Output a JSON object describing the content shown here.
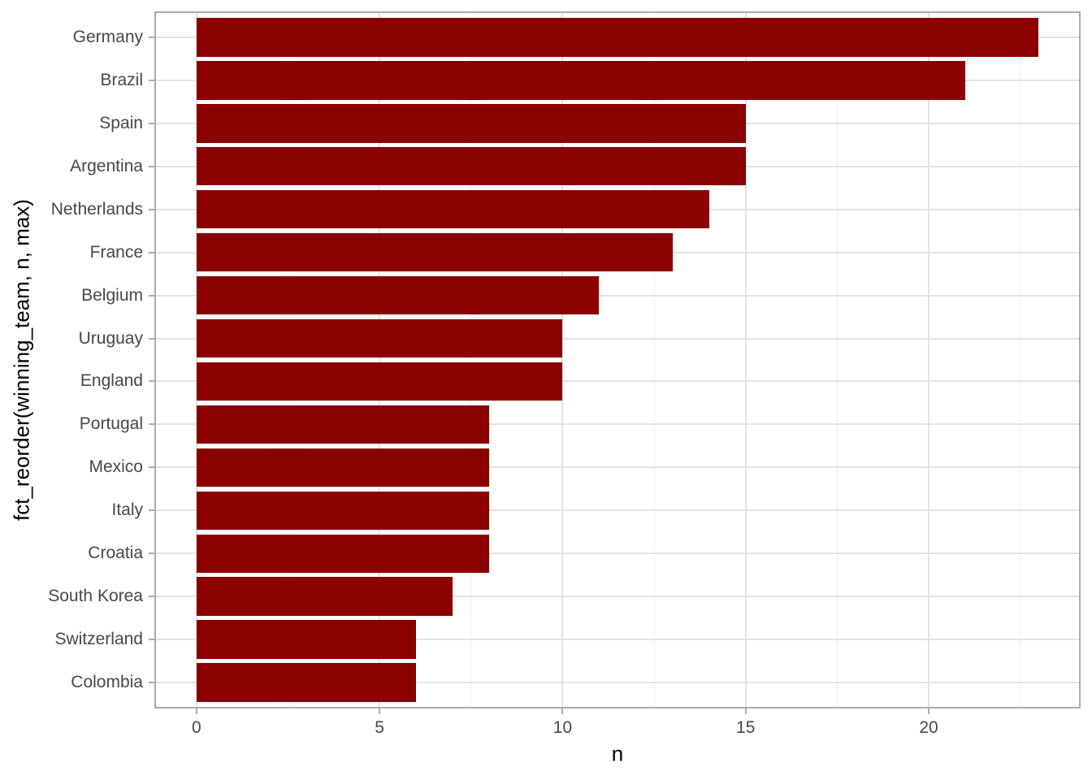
{
  "chart_data": {
    "type": "bar",
    "orientation": "horizontal",
    "title": "",
    "xlabel": "n",
    "ylabel": "fct_reorder(winning_team, n, max)",
    "categories": [
      "Germany",
      "Brazil",
      "Spain",
      "Argentina",
      "Netherlands",
      "France",
      "Belgium",
      "Uruguay",
      "England",
      "Portugal",
      "Mexico",
      "Italy",
      "Croatia",
      "South Korea",
      "Switzerland",
      "Colombia"
    ],
    "values": [
      23,
      21,
      15,
      15,
      14,
      13,
      11,
      10,
      10,
      8,
      8,
      8,
      8,
      7,
      6,
      6
    ],
    "x_ticks": [
      0,
      5,
      10,
      15,
      20
    ],
    "x_minor_ticks": [
      2.5,
      7.5,
      12.5,
      17.5,
      22.5
    ],
    "xlim": [
      -1.15,
      24.15
    ],
    "data_range": [
      0,
      23
    ],
    "bar_width_ratio": 0.9,
    "grid": true,
    "legend": false
  },
  "colors": {
    "bar": "#8B0000",
    "grid_major": "#E3E3E3",
    "grid_minor": "#EFEFEF",
    "panel_border": "#ABABAB",
    "tick": "#ABABAB",
    "tick_label": "#474747",
    "axis_title": "#000000",
    "background": "#FFFFFF"
  }
}
